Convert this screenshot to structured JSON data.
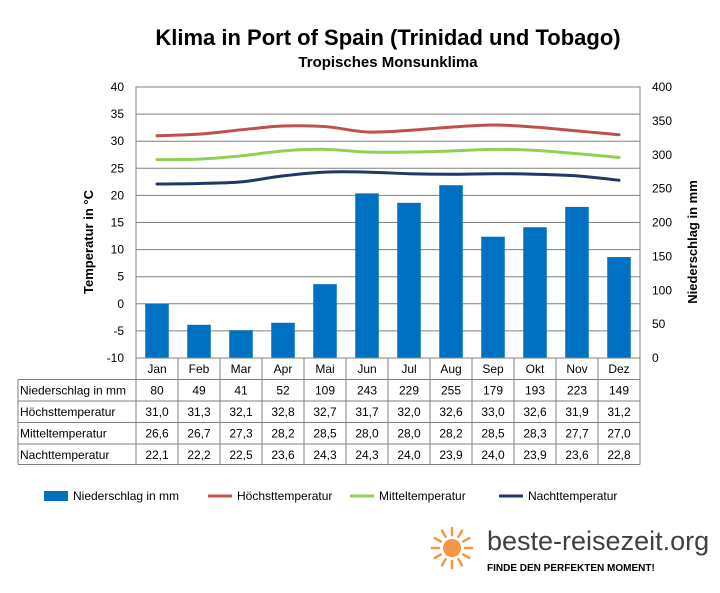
{
  "chart_data": {
    "type": "bar",
    "title": "Klima in Port of Spain (Trinidad und Tobago)",
    "subtitle": "Tropisches Monsunklima",
    "ylabel_left": "Temperatur in °C",
    "ylabel_right": "Niederschlag in mm",
    "ylim_left": [
      -10,
      40
    ],
    "ylim_right": [
      0,
      400
    ],
    "yticks_left": [
      "40",
      "35",
      "30",
      "25",
      "20",
      "15",
      "10",
      "5",
      "0",
      "-5",
      "-10"
    ],
    "yticks_right": [
      "400",
      "350",
      "300",
      "250",
      "200",
      "150",
      "100",
      "50",
      "0"
    ],
    "categories": [
      "Jan",
      "Feb",
      "Mar",
      "Apr",
      "Mai",
      "Jun",
      "Jul",
      "Aug",
      "Sep",
      "Okt",
      "Nov",
      "Dez"
    ],
    "grid": true,
    "legend_position": "bottom",
    "bar_series": {
      "name": "Niederschlag in mm",
      "color": "#0070c0",
      "axis": "right",
      "values": [
        80,
        49,
        41,
        52,
        109,
        243,
        229,
        255,
        179,
        193,
        223,
        149
      ],
      "labels": [
        "80",
        "49",
        "41",
        "52",
        "109",
        "243",
        "229",
        "255",
        "179",
        "193",
        "223",
        "149"
      ]
    },
    "line_series": [
      {
        "name": "Höchsttemperatur",
        "color": "#c0504d",
        "axis": "left",
        "values": [
          31.0,
          31.3,
          32.1,
          32.8,
          32.7,
          31.7,
          32.0,
          32.6,
          33.0,
          32.6,
          31.9,
          31.2
        ],
        "labels": [
          "31,0",
          "31,3",
          "32,1",
          "32,8",
          "32,7",
          "31,7",
          "32,0",
          "32,6",
          "33,0",
          "32,6",
          "31,9",
          "31,2"
        ]
      },
      {
        "name": "Mitteltemperatur",
        "color": "#92d050",
        "axis": "left",
        "values": [
          26.6,
          26.7,
          27.3,
          28.2,
          28.5,
          28.0,
          28.0,
          28.2,
          28.5,
          28.3,
          27.7,
          27.0
        ],
        "labels": [
          "26,6",
          "26,7",
          "27,3",
          "28,2",
          "28,5",
          "28,0",
          "28,0",
          "28,2",
          "28,5",
          "28,3",
          "27,7",
          "27,0"
        ]
      },
      {
        "name": "Nachttemperatur",
        "color": "#1f3864",
        "axis": "left",
        "values": [
          22.1,
          22.2,
          22.5,
          23.6,
          24.3,
          24.3,
          24.0,
          23.9,
          24.0,
          23.9,
          23.6,
          22.8
        ],
        "labels": [
          "22,1",
          "22,2",
          "22,5",
          "23,6",
          "24,3",
          "24,3",
          "24,0",
          "23,9",
          "24,0",
          "23,9",
          "23,6",
          "22,8"
        ]
      }
    ]
  },
  "branding": {
    "site": "beste-reisezeit.org",
    "slogan": "FINDE DEN PERFEKTEN MOMENT!",
    "sun_icon": "sun-icon",
    "sun_color": "#f79646"
  }
}
